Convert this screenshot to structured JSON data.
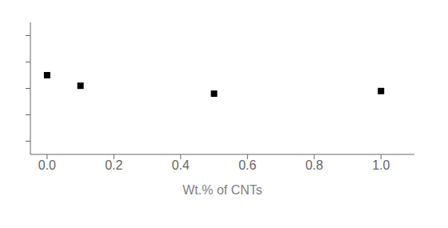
{
  "chart_data": {
    "type": "scatter",
    "x": [
      0.0,
      0.1,
      0.5,
      1.0
    ],
    "values": [
      155,
      151,
      148,
      149
    ],
    "xlim": [
      -0.05,
      1.1
    ],
    "ylim": [
      125,
      175
    ],
    "xticks": [
      {
        "value": 0.0,
        "label": "0.0"
      },
      {
        "value": 0.2,
        "label": "0.2"
      },
      {
        "value": 0.4,
        "label": "0.4"
      },
      {
        "value": 0.6,
        "label": "0.6"
      },
      {
        "value": 0.8,
        "label": "0.8"
      },
      {
        "value": 1.0,
        "label": "1.0"
      }
    ],
    "yticks": [
      130,
      140,
      150,
      160,
      170
    ],
    "xlabel": "Wt.% of CNTs",
    "tick_labels": "x",
    "marker": "square",
    "color": "black",
    "grid": false
  }
}
